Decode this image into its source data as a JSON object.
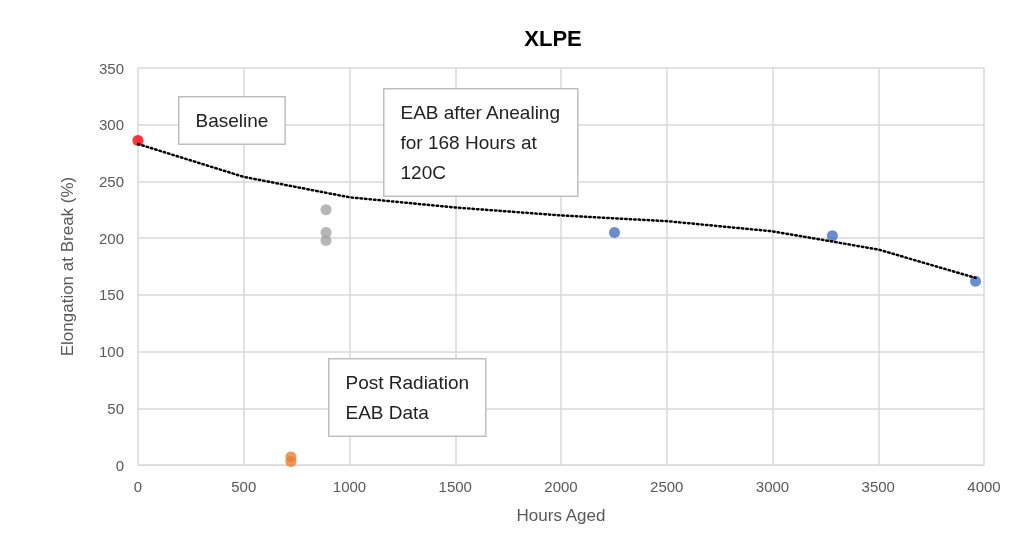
{
  "chart_data": {
    "type": "scatter",
    "title": "XLPE",
    "xlabel": "Hours Aged",
    "ylabel": "Elongation at Break (%)",
    "xlim": [
      0,
      4000
    ],
    "xticks": [
      0,
      500,
      1000,
      1500,
      2000,
      2500,
      3000,
      3500,
      4000
    ],
    "ylim": [
      0,
      350
    ],
    "yticks": [
      0,
      50,
      100,
      150,
      200,
      250,
      300,
      350
    ],
    "grid": true,
    "marker": "circle",
    "annotations": [
      "Baseline",
      "EAB after Anealing\nfor 168 Hours at\n120C",
      "Post Radiation\nEAB Data"
    ],
    "series": [
      {
        "color": "#ff0000",
        "x": [
          0
        ],
        "values": [
          286
        ]
      },
      {
        "color": "#a5a5a5",
        "x": [
          889,
          889,
          889
        ],
        "values": [
          225,
          205,
          198
        ]
      },
      {
        "color": "#ed7d31",
        "x": [
          723,
          723
        ],
        "values": [
          3,
          7
        ]
      },
      {
        "color": "#4472c4",
        "x": [
          2253,
          3283,
          3960
        ],
        "values": [
          205,
          202,
          162
        ]
      },
      {
        "type": "line",
        "color": "#000000",
        "line_style": "dotted",
        "marker": "none",
        "x": [
          0,
          500,
          1000,
          1500,
          2000,
          2500,
          3000,
          3500,
          3960
        ],
        "values": [
          283,
          254,
          236,
          227,
          220,
          215,
          206,
          190,
          165
        ]
      }
    ]
  }
}
